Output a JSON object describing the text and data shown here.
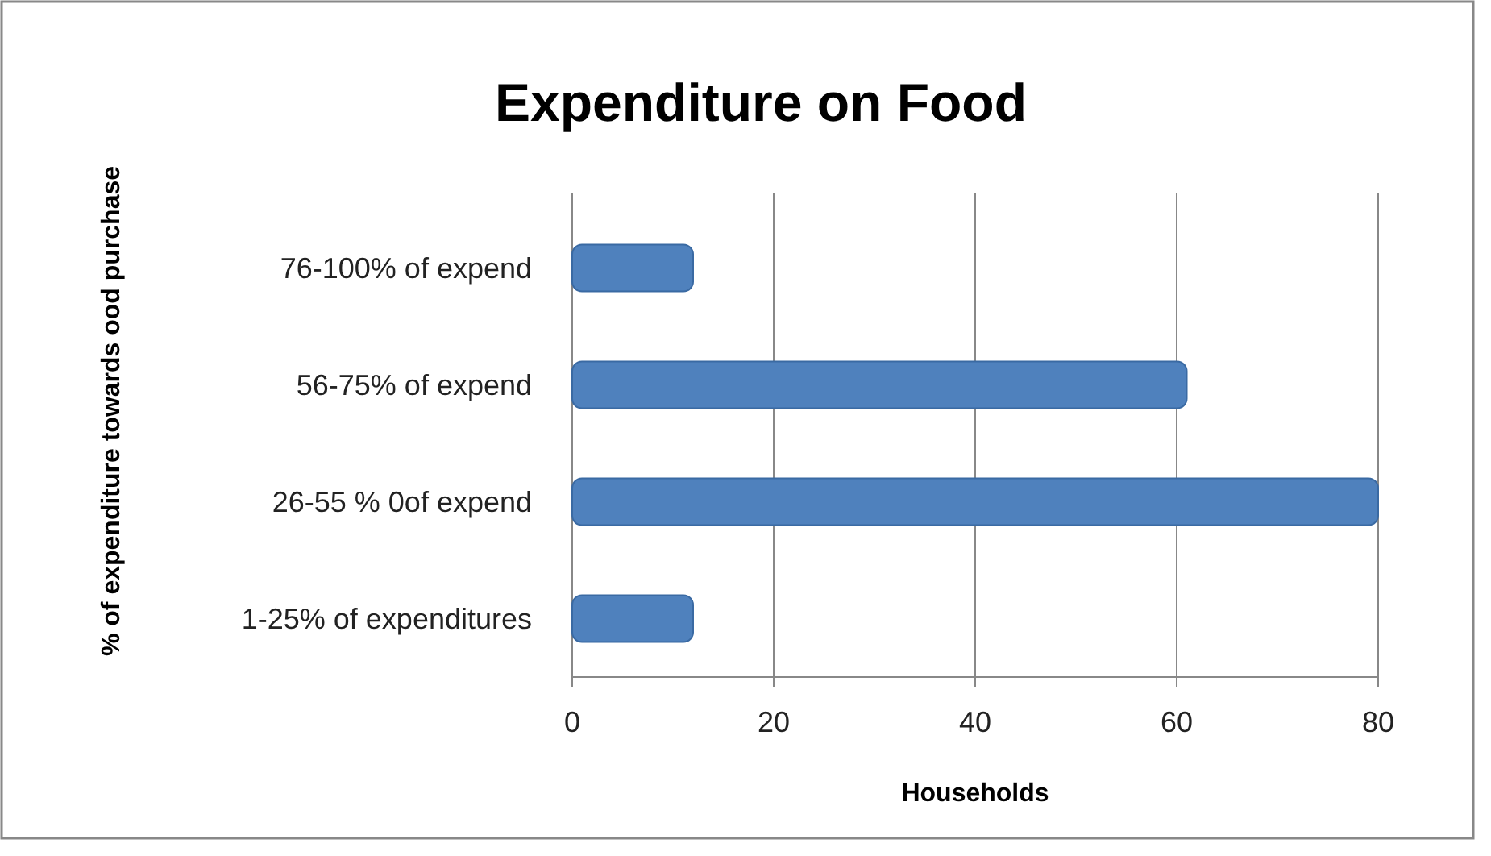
{
  "chart_data": {
    "type": "bar",
    "orientation": "horizontal",
    "title": "Expenditure on Food",
    "xlabel": "Households",
    "ylabel": "% of expenditure towards ood purchase",
    "categories": [
      "76-100% of expend",
      "56-75% of expend",
      "26-55 % 0of expend",
      "1-25% of expenditures"
    ],
    "values": [
      12,
      61,
      80,
      12
    ],
    "color": "#4f81bd",
    "xlim": [
      0,
      80
    ],
    "xticks": [
      0,
      20,
      40,
      60,
      80
    ],
    "grid": "x"
  }
}
